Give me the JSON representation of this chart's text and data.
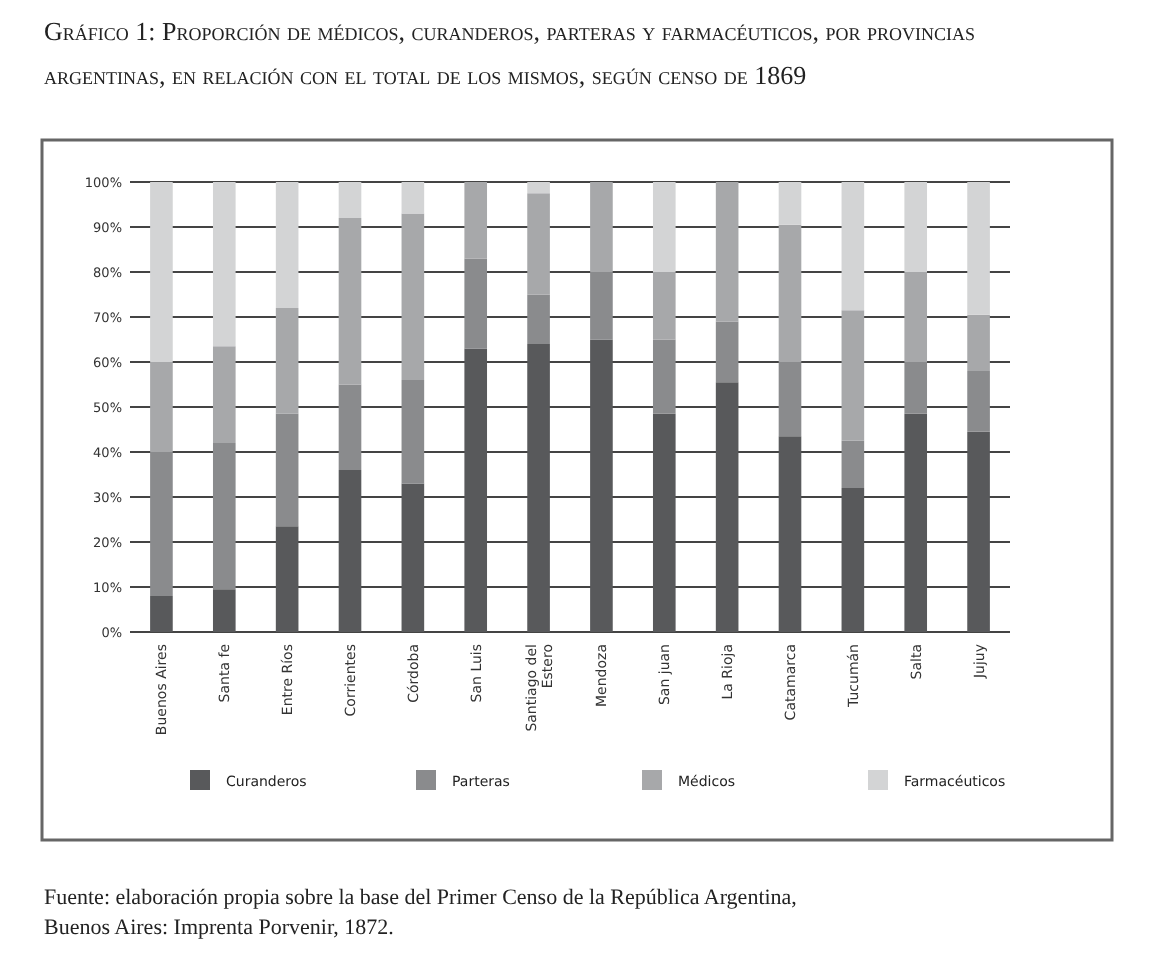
{
  "chart_data": {
    "type": "bar",
    "stacked": true,
    "title": "Gráfico 1: Proporción de médicos, curanderos, parteras y farmacéuticos, por provincias argentinas, en relación con el total de los mismos, según censo de 1869",
    "categories": [
      "Buenos Aires",
      "Santa fe",
      "Entre Ríos",
      "Corrientes",
      "Córdoba",
      "San Luis",
      "Santiago del Estero",
      "Mendoza",
      "San juan",
      "La Rioja",
      "Catamarca",
      "Tucumán",
      "Salta",
      "Jujuy"
    ],
    "series": [
      {
        "name": "Curanderos",
        "color": "#58595b",
        "values": [
          8,
          9.5,
          23.5,
          36,
          33,
          63,
          64,
          65,
          48.5,
          55.5,
          43.5,
          32,
          48.5,
          44.5
        ]
      },
      {
        "name": "Parteras",
        "color": "#8a8b8d",
        "values": [
          32,
          32.5,
          25,
          19,
          23,
          20,
          11,
          15,
          16.5,
          13.5,
          16.5,
          10.5,
          11.5,
          13.5
        ]
      },
      {
        "name": "Médicos",
        "color": "#a7a8aa",
        "values": [
          20,
          21.5,
          23.5,
          37,
          37,
          17,
          22.5,
          20,
          15,
          31,
          30.5,
          29,
          20,
          12.5
        ]
      },
      {
        "name": "Farmacéuticos",
        "color": "#d3d4d5",
        "values": [
          40,
          36.5,
          28,
          8,
          7,
          0,
          2.5,
          0,
          20,
          0,
          9.5,
          28.5,
          20,
          29.5
        ]
      }
    ],
    "ylim": [
      0,
      100
    ],
    "yticks": [
      {
        "value": 0,
        "label": "0%"
      },
      {
        "value": 10,
        "label": "10%"
      },
      {
        "value": 20,
        "label": "20%"
      },
      {
        "value": 30,
        "label": "30%"
      },
      {
        "value": 40,
        "label": "40%"
      },
      {
        "value": 50,
        "label": "50%"
      },
      {
        "value": 60,
        "label": "60%"
      },
      {
        "value": 70,
        "label": "70%"
      },
      {
        "value": 80,
        "label": "80%"
      },
      {
        "value": 90,
        "label": "90%"
      },
      {
        "value": 100,
        "label": "100%"
      }
    ],
    "grid": "y",
    "legend": "bottom",
    "annotations": [
      "Fuente: elaboración propia sobre la base del Primer Censo de la República Argentina, Buenos Aires: Imprenta Porvenir, 1872."
    ]
  }
}
